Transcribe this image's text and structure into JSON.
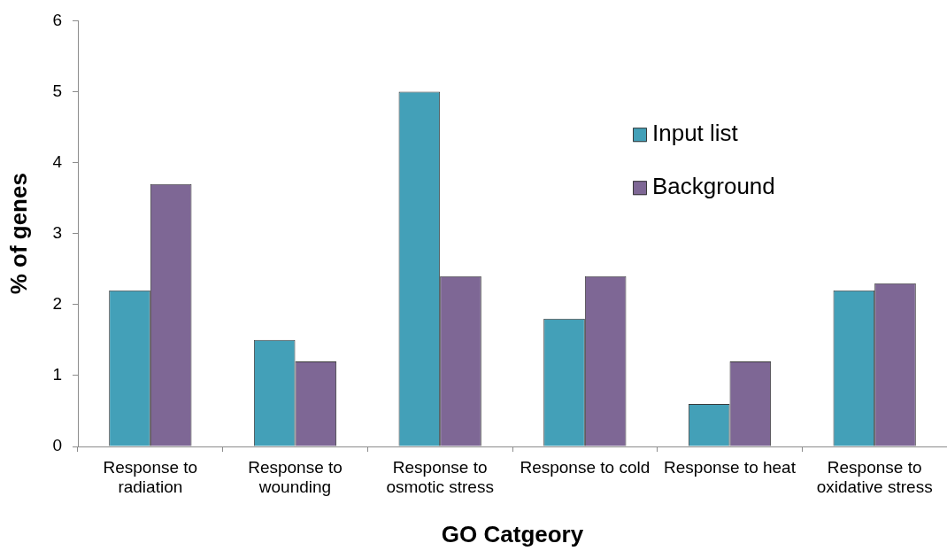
{
  "chart_data": {
    "type": "bar",
    "xlabel": "GO Catgeory",
    "ylabel": "% of genes",
    "categories": [
      "Response to radiation",
      "Response to wounding",
      "Response to osmotic stress",
      "Response to cold",
      "Response to heat",
      "Response to oxidative stress"
    ],
    "series": [
      {
        "name": "Input list",
        "color": "#43a0b8",
        "values": [
          2.2,
          1.5,
          5.0,
          1.8,
          0.6,
          2.2
        ]
      },
      {
        "name": "Background",
        "color": "#7e6795",
        "values": [
          3.7,
          1.2,
          2.4,
          2.4,
          1.2,
          2.3
        ]
      }
    ],
    "ylim": [
      0,
      6
    ],
    "yticks": [
      0,
      1,
      2,
      3,
      4,
      5,
      6
    ],
    "legend": "top right"
  }
}
